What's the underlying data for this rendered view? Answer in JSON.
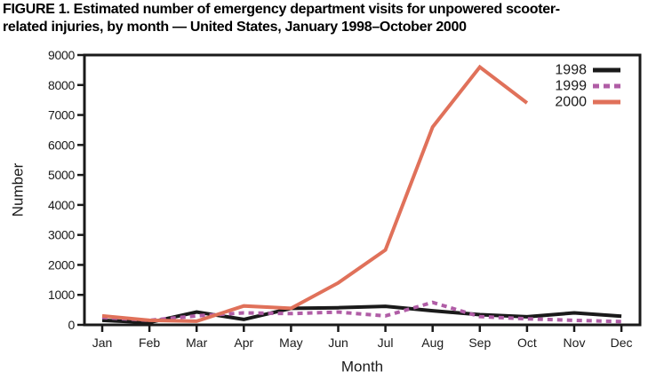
{
  "figure": {
    "title_line1": "FIGURE 1. Estimated number of emergency department visits for unpowered scooter-",
    "title_line2": "related injuries, by month — United States, January 1998–October 2000"
  },
  "chart_data": {
    "type": "line",
    "title": "Estimated number of emergency department visits for unpowered scooter-related injuries, by month — United States, January 1998–October 2000",
    "xlabel": "Month",
    "ylabel": "Number",
    "categories": [
      "Jan",
      "Feb",
      "Mar",
      "Apr",
      "May",
      "Jun",
      "Jul",
      "Aug",
      "Sep",
      "Oct",
      "Nov",
      "Dec"
    ],
    "ylim": [
      0,
      9000
    ],
    "yticks": [
      0,
      1000,
      2000,
      3000,
      4000,
      5000,
      6000,
      7000,
      8000,
      9000
    ],
    "grid": false,
    "legend_position": "top-right",
    "frame_color": "#1a1a1a",
    "series": [
      {
        "name": "1998",
        "color": "#1a1a1a",
        "line_style": "solid",
        "values": [
          150,
          80,
          430,
          180,
          550,
          570,
          620,
          470,
          340,
          270,
          400,
          290
        ]
      },
      {
        "name": "1999",
        "color": "#b05da6",
        "line_style": "dashed",
        "values": [
          250,
          150,
          300,
          400,
          375,
          425,
          300,
          750,
          275,
          200,
          150,
          110
        ]
      },
      {
        "name": "2000",
        "color": "#e0715a",
        "line_style": "solid",
        "values": [
          300,
          150,
          120,
          630,
          550,
          1400,
          2500,
          6600,
          8600,
          7400
        ]
      }
    ]
  }
}
